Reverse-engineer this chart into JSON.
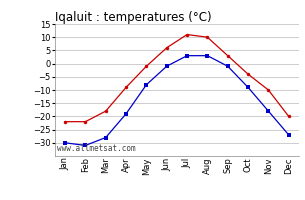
{
  "title": "Iqaluit : temperatures (°C)",
  "months": [
    "Jan",
    "Feb",
    "Mar",
    "Apr",
    "May",
    "Jun",
    "Jul",
    "Aug",
    "Sep",
    "Oct",
    "Nov",
    "Dec"
  ],
  "red_values": [
    -22,
    -22,
    -18,
    -9,
    -1,
    6,
    11,
    10,
    3,
    -4,
    -10,
    -20
  ],
  "blue_values": [
    -30,
    -31,
    -28,
    -19,
    -8,
    -1,
    3,
    3,
    -1,
    -9,
    -18,
    -27
  ],
  "red_color": "#cc0000",
  "blue_color": "#0000cc",
  "grid_color": "#bbbbbb",
  "bg_color": "#ffffff",
  "ylim": [
    -35,
    15
  ],
  "yticks": [
    -30,
    -25,
    -20,
    -15,
    -10,
    -5,
    0,
    5,
    10,
    15
  ],
  "watermark": "www.allmetsat.com",
  "title_fontsize": 8.5,
  "tick_fontsize": 6.0,
  "watermark_fontsize": 5.5
}
